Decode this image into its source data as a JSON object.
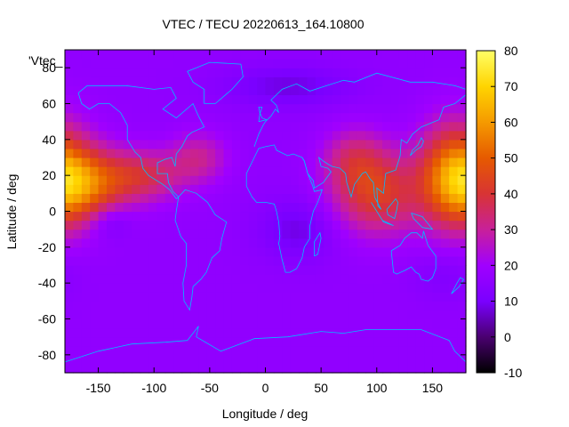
{
  "chart_data": {
    "type": "heatmap",
    "title": "VTEC / TECU 20220613_164.10800",
    "xlabel": "Longitude / deg",
    "ylabel": "Latitude / deg",
    "key_label": "'Vtec_",
    "xlim": [
      -180,
      180
    ],
    "ylim": [
      -90,
      90
    ],
    "x_ticks": [
      -150,
      -100,
      -50,
      0,
      50,
      100,
      150
    ],
    "y_ticks": [
      -80,
      -60,
      -40,
      -20,
      0,
      20,
      40,
      60,
      80
    ],
    "colorbar": {
      "range": [
        -10,
        80
      ],
      "ticks": [
        -10,
        0,
        10,
        20,
        30,
        40,
        50,
        60,
        70,
        80
      ],
      "palette": [
        "#000000",
        "#4a0070",
        "#7a00ff",
        "#a000ff",
        "#c8209a",
        "#d83434",
        "#e65a00",
        "#f59a00",
        "#ffd400",
        "#ffff66"
      ]
    },
    "field": {
      "background_vtec": 16,
      "features": [
        {
          "lon": 170,
          "lat": 20,
          "sigma_lon": 22,
          "sigma_lat": 20,
          "vtec": 40
        },
        {
          "lon": 100,
          "lat": 10,
          "sigma_lon": 28,
          "sigma_lat": 16,
          "vtec": 26
        },
        {
          "lon": 80,
          "lat": 30,
          "sigma_lon": 20,
          "sigma_lat": 12,
          "vtec": 14
        },
        {
          "lon": -160,
          "lat": 15,
          "sigma_lon": 25,
          "sigma_lat": 14,
          "vtec": 30
        },
        {
          "lon": -110,
          "lat": 20,
          "sigma_lon": 25,
          "sigma_lat": 10,
          "vtec": 20
        },
        {
          "lon": -60,
          "lat": 30,
          "sigma_lon": 18,
          "sigma_lat": 10,
          "vtec": 14
        },
        {
          "lon": -140,
          "lat": -5,
          "sigma_lon": 14,
          "sigma_lat": 7,
          "vtec": -8
        },
        {
          "lon": 30,
          "lat": -10,
          "sigma_lon": 25,
          "sigma_lat": 12,
          "vtec": -8
        },
        {
          "lon": 20,
          "lat": 70,
          "sigma_lon": 40,
          "sigma_lat": 8,
          "vtec": -8
        },
        {
          "lon": 160,
          "lat": -35,
          "sigma_lon": 20,
          "sigma_lat": 10,
          "vtec": -4
        }
      ]
    }
  }
}
